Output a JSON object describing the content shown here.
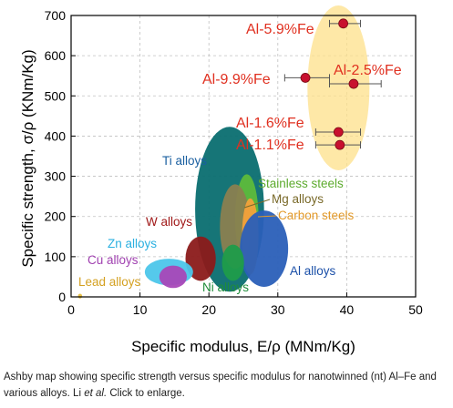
{
  "chart_data": {
    "type": "scatter",
    "xlabel": "Specific modulus, E/ρ (MNm/Kg)",
    "ylabel": "Specific strength, σ/ρ (KNm/Kg)",
    "xlim": [
      0,
      50
    ],
    "ylim": [
      0,
      700
    ],
    "xticks": [
      "0",
      "10",
      "20",
      "30",
      "40",
      "50"
    ],
    "yticks": [
      "0",
      "100",
      "200",
      "300",
      "400",
      "500",
      "600",
      "700"
    ],
    "grid": true,
    "points": [
      {
        "label": "Al-5.9%Fe",
        "x": 39.5,
        "y": 680,
        "xerr": [
          37.5,
          42
        ]
      },
      {
        "label": "Al-9.9%Fe",
        "x": 34,
        "y": 545,
        "xerr": [
          31,
          37.5
        ]
      },
      {
        "label": "Al-2.5%Fe",
        "x": 41,
        "y": 530,
        "xerr": [
          37.5,
          45
        ]
      },
      {
        "label": "Al-1.6%Fe",
        "x": 38.8,
        "y": 410,
        "xerr": [
          35.5,
          42
        ]
      },
      {
        "label": "Al-1.1%Fe",
        "x": 39,
        "y": 378,
        "xerr": [
          35.5,
          42
        ]
      }
    ],
    "regions": [
      {
        "label": "Ti alloys",
        "color": "#0a6e70",
        "cx": 23,
        "cy": 218,
        "rx": 5,
        "ry": 205
      },
      {
        "label": "Stainless steels",
        "color": "#5dbb3b",
        "cx": 25.5,
        "cy": 195,
        "rx": 1.7,
        "ry": 110
      },
      {
        "label": "Mg alloys",
        "color": "#8a8050",
        "cx": 23.8,
        "cy": 175,
        "rx": 2.2,
        "ry": 105
      },
      {
        "label": "Carbon steels",
        "color": "#f4a13a",
        "cx": 26,
        "cy": 150,
        "rx": 1.2,
        "ry": 95
      },
      {
        "label": "Al alloys",
        "color": "#2a5fb8",
        "cx": 28,
        "cy": 120,
        "rx": 3.5,
        "ry": 95
      },
      {
        "label": "W alloys",
        "color": "#8b1a1a",
        "cx": 18.8,
        "cy": 95,
        "rx": 2.2,
        "ry": 55
      },
      {
        "label": "Ni alloys",
        "color": "#1f9c4a",
        "cx": 23.5,
        "cy": 85,
        "rx": 1.6,
        "ry": 45
      },
      {
        "label": "Zn alloys",
        "color": "#4cc6ea",
        "cx": 14.2,
        "cy": 62,
        "rx": 3.5,
        "ry": 33
      },
      {
        "label": "Cu alloys",
        "color": "#a848b8",
        "cx": 14.8,
        "cy": 50,
        "rx": 2,
        "ry": 28
      },
      {
        "label": "Lead alloys",
        "color": "#e8c040",
        "cx": 1.3,
        "cy": 2,
        "rx": 0.3,
        "ry": 6
      },
      {
        "label": "",
        "color": "#fde08a",
        "cx": 38.8,
        "cy": 520,
        "rx": 4.5,
        "ry": 205
      }
    ]
  },
  "caption": {
    "text_before": "Ashby map showing specific strength versus specific modulus for nanotwinned (nt) Al–Fe and various alloys. Li ",
    "italic": "et al.",
    "text_after": " Click to enlarge."
  },
  "colors": {
    "point": "#c8102e",
    "point_label": "#e03020",
    "grid": "#c0c0c0"
  }
}
